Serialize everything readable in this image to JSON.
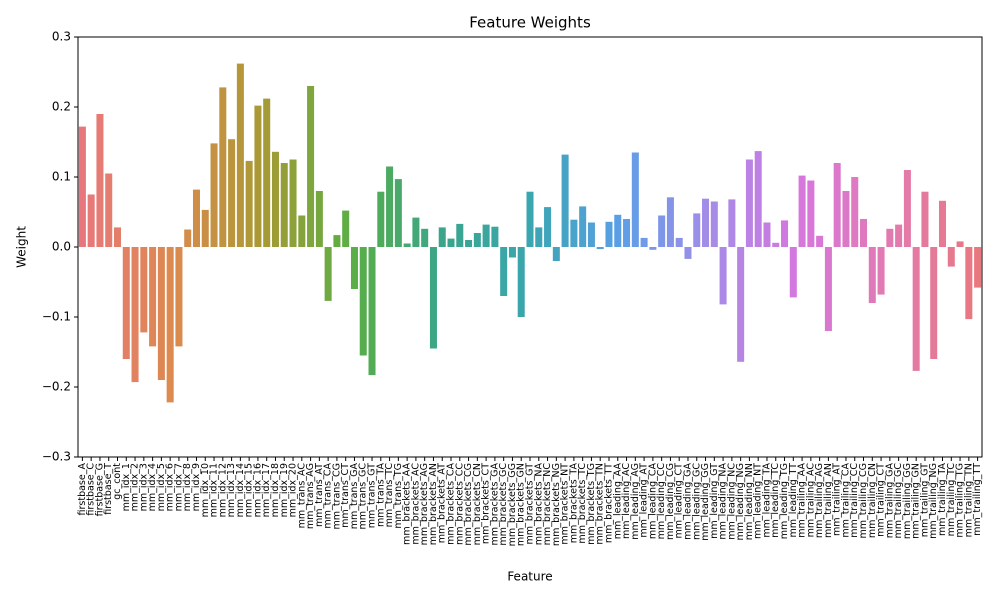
{
  "chart_data": {
    "type": "bar",
    "title": "Feature Weights",
    "x_label": "Feature",
    "y_label": "Weight",
    "categories": [
      "firstbase_A",
      "firstbase_C",
      "firstbase_G",
      "firstbase_T",
      "gc_cont",
      "mm_idx_1",
      "mm_idx_2",
      "mm_idx_3",
      "mm_idx_4",
      "mm_idx_5",
      "mm_idx_6",
      "mm_idx_7",
      "mm_idx_8",
      "mm_idx_9",
      "mm_idx_10",
      "mm_idx_11",
      "mm_idx_12",
      "mm_idx_13",
      "mm_idx_14",
      "mm_idx_15",
      "mm_idx_16",
      "mm_idx_17",
      "mm_idx_18",
      "mm_idx_19",
      "mm_idx_20",
      "mm_trans_AC",
      "mm_trans_AG",
      "mm_trans_AT",
      "mm_trans_CA",
      "mm_trans_CG",
      "mm_trans_CT",
      "mm_trans_GA",
      "mm_trans_GC",
      "mm_trans_GT",
      "mm_trans_TA",
      "mm_trans_TC",
      "mm_trans_TG",
      "mm_brackets_AA",
      "mm_brackets_AC",
      "mm_brackets_AG",
      "mm_brackets_AN",
      "mm_brackets_AT",
      "mm_brackets_CA",
      "mm_brackets_CC",
      "mm_brackets_CG",
      "mm_brackets_CN",
      "mm_brackets_CT",
      "mm_brackets_GA",
      "mm_brackets_GC",
      "mm_brackets_GG",
      "mm_brackets_GN",
      "mm_brackets_GT",
      "mm_brackets_NA",
      "mm_brackets_NC",
      "mm_brackets_NG",
      "mm_brackets_NT",
      "mm_brackets_TA",
      "mm_brackets_TC",
      "mm_brackets_TG",
      "mm_brackets_TN",
      "mm_brackets_TT",
      "mm_leading_AA",
      "mm_leading_AC",
      "mm_leading_AG",
      "mm_leading_AT",
      "mm_leading_CA",
      "mm_leading_CC",
      "mm_leading_CG",
      "mm_leading_CT",
      "mm_leading_GA",
      "mm_leading_GC",
      "mm_leading_GG",
      "mm_leading_GT",
      "mm_leading_NA",
      "mm_leading_NC",
      "mm_leading_NG",
      "mm_leading_NN",
      "mm_leading_NT",
      "mm_leading_TA",
      "mm_leading_TC",
      "mm_leading_TG",
      "mm_leading_TT",
      "mm_trailing_AA",
      "mm_trailing_AC",
      "mm_trailing_AG",
      "mm_trailing_AN",
      "mm_trailing_AT",
      "mm_trailing_CA",
      "mm_trailing_CC",
      "mm_trailing_CG",
      "mm_trailing_CN",
      "mm_trailing_CT",
      "mm_trailing_GA",
      "mm_trailing_GC",
      "mm_trailing_GG",
      "mm_trailing_GN",
      "mm_trailing_GT",
      "mm_trailing_NG",
      "mm_trailing_TA",
      "mm_trailing_TC",
      "mm_trailing_TG",
      "mm_trailing_TN",
      "mm_trailing_TT"
    ],
    "values": [
      0.172,
      0.075,
      0.19,
      0.105,
      0.028,
      -0.16,
      -0.193,
      -0.122,
      -0.142,
      -0.19,
      -0.222,
      -0.142,
      0.025,
      0.082,
      0.053,
      0.148,
      0.228,
      0.154,
      0.262,
      0.123,
      0.202,
      0.212,
      0.136,
      0.12,
      0.125,
      0.045,
      0.23,
      0.08,
      -0.077,
      0.017,
      0.052,
      -0.06,
      -0.155,
      -0.183,
      0.079,
      0.115,
      0.097,
      0.005,
      0.042,
      0.026,
      -0.145,
      0.028,
      0.012,
      0.033,
      0.01,
      0.02,
      0.032,
      0.029,
      -0.07,
      -0.015,
      -0.1,
      0.079,
      0.028,
      0.057,
      -0.02,
      0.132,
      0.039,
      0.058,
      0.035,
      -0.003,
      0.036,
      0.046,
      0.04,
      0.135,
      0.013,
      -0.004,
      0.045,
      0.071,
      0.013,
      -0.017,
      0.048,
      0.069,
      0.065,
      -0.082,
      0.068,
      -0.164,
      0.125,
      0.137,
      0.035,
      0.006,
      0.038,
      -0.072,
      0.102,
      0.095,
      0.016,
      -0.12,
      0.12,
      0.08,
      0.1,
      0.04,
      -0.08,
      -0.068,
      0.026,
      0.032,
      0.11,
      -0.177,
      0.079,
      -0.16,
      0.066,
      -0.028,
      0.008,
      -0.103,
      -0.058
    ],
    "colors": [
      "#e8777d",
      "#dc8a4e",
      "#a99a35",
      "#5aae45",
      "#3aa58a",
      "#3aa6b0",
      "#5b9fe6",
      "#a48ce8",
      "#d677de",
      "#e27ab2",
      "#e8787f"
    ],
    "ylim": [
      -0.3,
      0.3
    ],
    "yticks": [
      {
        "value": -0.3,
        "label": "−0.3"
      },
      {
        "value": -0.2,
        "label": "−0.2"
      },
      {
        "value": -0.1,
        "label": "−0.1"
      },
      {
        "value": 0,
        "label": "0.0"
      },
      0.1,
      0.2,
      0.3
    ]
  }
}
